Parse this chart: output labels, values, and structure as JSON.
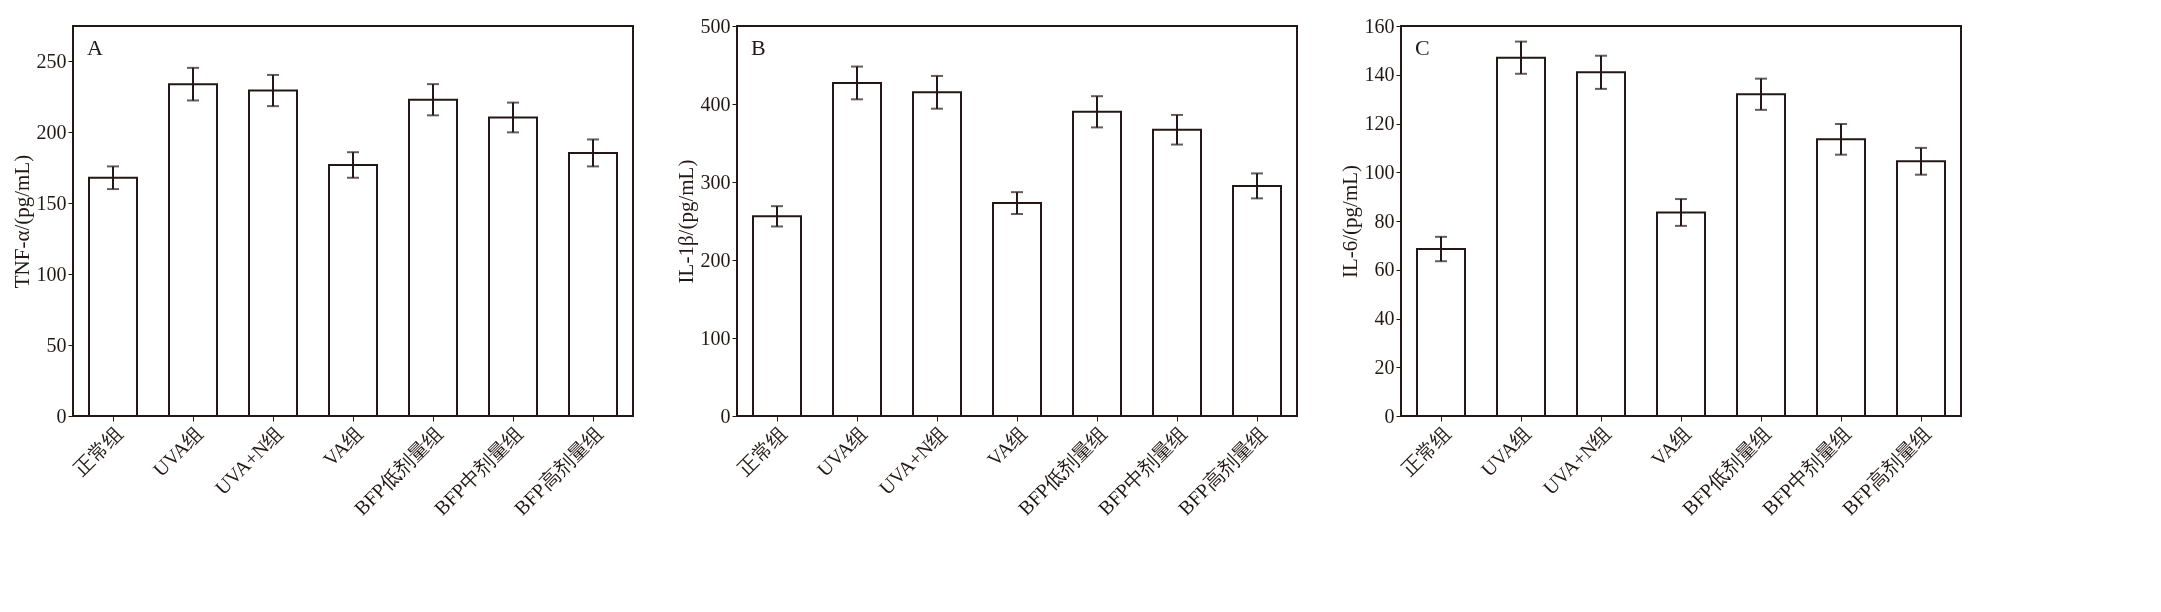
{
  "chart_data": [
    {
      "type": "bar",
      "ylabel": "TNF-α/(pg/mL)",
      "annotations": [
        "A"
      ],
      "categories": [
        "正常组",
        "UVA组",
        "UVA+N组",
        "VA组",
        "BFP低剂量组",
        "BFP中剂量组",
        "BFP高剂量组"
      ],
      "values": [
        168,
        234,
        229.5,
        177,
        223,
        210.5,
        185.5
      ],
      "errors": [
        8,
        11.5,
        11,
        9,
        11,
        10.5,
        9.5
      ],
      "color": "#ffffff",
      "ylim": [
        0,
        275
      ],
      "yticks": [
        0,
        50,
        100,
        150,
        200,
        250
      ],
      "grid": false
    },
    {
      "type": "bar",
      "ylabel": "IL-1β/(pg/mL)",
      "annotations": [
        "B"
      ],
      "categories": [
        "正常组",
        "UVA组",
        "UVA+N组",
        "VA组",
        "BFP低剂量组",
        "BFP中剂量组",
        "BFP高剂量组"
      ],
      "values": [
        256,
        427,
        415,
        273,
        390,
        367,
        295
      ],
      "errors": [
        13,
        21,
        21,
        14,
        20,
        19,
        16
      ],
      "color": "#ffffff",
      "ylim": [
        0,
        500
      ],
      "yticks": [
        0,
        100,
        200,
        300,
        400,
        500
      ],
      "grid": false
    },
    {
      "type": "bar",
      "ylabel": "IL-6/(pg/mL)",
      "annotations": [
        "C"
      ],
      "categories": [
        "正常组",
        "UVA组",
        "UVA+N组",
        "VA组",
        "BFP低剂量组",
        "BFP中剂量组",
        "BFP高剂量组"
      ],
      "values": [
        68.5,
        147,
        141,
        83.5,
        132,
        113.5,
        104.5
      ],
      "errors": [
        5,
        6.6,
        6.8,
        5.5,
        6.4,
        6.3,
        5.5
      ],
      "color": "#ffffff",
      "ylim": [
        0,
        160
      ],
      "yticks": [
        0,
        20,
        40,
        60,
        80,
        100,
        120,
        140,
        160
      ],
      "grid": false
    }
  ]
}
